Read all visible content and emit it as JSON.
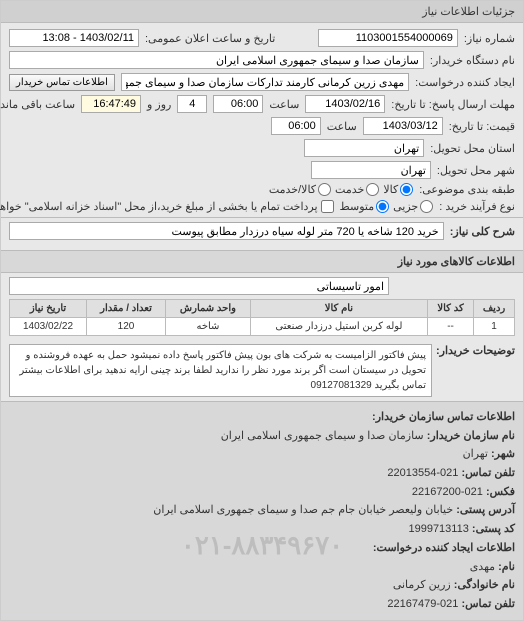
{
  "panel_title": "جزئیات اطلاعات نیاز",
  "fields": {
    "request_no_label": "شماره نیاز:",
    "request_no": "1103001554000069",
    "announce_label": "تاریخ و ساعت اعلان عمومی:",
    "announce_value": "1403/02/11 - 13:08",
    "buyer_org_label": "نام دستگاه خریدار:",
    "buyer_org": "سازمان صدا و سیمای جمهوری اسلامی ایران",
    "creator_label": "ایجاد کننده درخواست:",
    "creator": "مهدی زرین کرمانی کارمند تدارکات سازمان صدا و سیمای جمهوری اسلامی ایران",
    "contact_btn": "اطلاعات تماس خریدار",
    "deadline_label": "مهلت ارسال پاسخ: تا تاریخ:",
    "deadline_date": "1403/02/16",
    "deadline_time_label": "ساعت",
    "deadline_time": "06:00",
    "days_remain": "4",
    "days_remain_label": "روز و",
    "time_remain": "16:47:49",
    "time_remain_label": "ساعت باقی مانده",
    "price_until_label": "قیمت: تا تاریخ:",
    "price_date": "1403/03/12",
    "price_time": "06:00",
    "delivery_state_label": "استان محل تحویل:",
    "delivery_state": "تهران",
    "delivery_city_label": "شهر محل تحویل:",
    "delivery_city": "تهران",
    "class_label": "طبقه بندی موضوعی:",
    "radio_goods": "کالا",
    "radio_service": "خدمت",
    "radio_both": "کالا/خدمت",
    "process_label": "نوع فرآیند خرید :",
    "radio_minor": "جزیی",
    "radio_medium": "متوسط",
    "process_note": "پرداخت تمام یا بخشی از مبلغ خرید،از محل \"اسناد خزانه اسلامی\" خواهد بود.",
    "summary_label": "شرح کلی نیاز:",
    "summary": "خرید 120 شاخه یا 720 متر لوله سیاه درزدار مطابق پیوست"
  },
  "goods_section_title": "اطلاعات کالاهای مورد نیاز",
  "goods_header_right": "",
  "goods_select": "امور تاسیساتی",
  "table": {
    "columns": [
      "ردیف",
      "کد کالا",
      "نام کالا",
      "واحد شمارش",
      "تعداد / مقدار",
      "تاریخ نیاز"
    ],
    "rows": [
      [
        "1",
        "--",
        "لوله کربن استیل درزدار صنعتی",
        "شاخه",
        "120",
        "1403/02/22"
      ]
    ]
  },
  "notes": {
    "label": "توضیحات خریدار:",
    "text": "پیش فاکتور الزامیست به شرکت های بون پیش فاکتور پاسخ داده نمیشود حمل به عهده فروشنده و تحویل در سیستان است اگر برند مورد نظر را ندارید لطفا برند چینی ارایه ندهید برای اطلاعات بیشتر تماس بگیرید 09127081329"
  },
  "contact": {
    "title": "اطلاعات تماس سازمان خریدار:",
    "org_label": "نام سازمان خریدار:",
    "org": "سازمان صدا و سیمای جمهوری اسلامی ایران",
    "city_label": "شهر:",
    "city": "تهران",
    "phone_label": "تلفن تماس:",
    "phone": "021-22013554",
    "fax_label": "فکس:",
    "fax": "021-22167200",
    "address_label": "آدرس پستی:",
    "address": "خیابان ولیعصر خیابان جام جم صدا و سیمای جمهوری اسلامی ایران",
    "postal_label": "کد پستی:",
    "postal": "1999713113",
    "creator_title": "اطلاعات ایجاد کننده درخواست:",
    "name_label": "نام:",
    "name": "مهدی",
    "family_label": "نام خانوادگی:",
    "family": "زرین کرمانی",
    "contact_phone_label": "تلفن تماس:",
    "contact_phone": "021-22167479"
  },
  "watermark": "۰۲۱-۸۸۳۴۹۶۷۰",
  "colors": {
    "panel_bg": "#e8e8e8",
    "header_bg": "#d0d0d0",
    "input_bg": "#ffffff",
    "border": "#bbbbbb"
  }
}
